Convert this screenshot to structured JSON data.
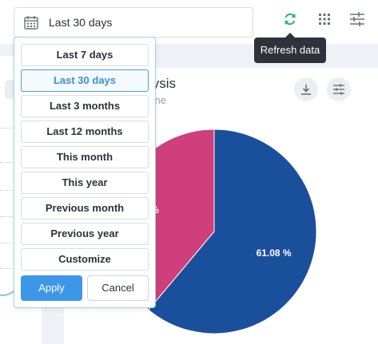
{
  "date_filter": {
    "value": "Last 30 days"
  },
  "toolbar": {
    "refresh_tooltip": "Refresh data"
  },
  "card": {
    "title": "ysis",
    "subtitle": "ntiOne"
  },
  "menu": {
    "options": [
      {
        "label": "Last 7 days",
        "selected": false
      },
      {
        "label": "Last 30 days",
        "selected": true
      },
      {
        "label": "Last 3 months",
        "selected": false
      },
      {
        "label": "Last 12 months",
        "selected": false
      },
      {
        "label": "This month",
        "selected": false
      },
      {
        "label": "This year",
        "selected": false
      },
      {
        "label": "Previous month",
        "selected": false
      },
      {
        "label": "Previous year",
        "selected": false
      },
      {
        "label": "Customize",
        "selected": false
      }
    ],
    "apply_label": "Apply",
    "cancel_label": "Cancel"
  },
  "colors": {
    "accent": "#3d96e8",
    "refresh_icon": "#2eb07a",
    "pie_blue": "#1a4f9c",
    "pie_pink": "#cf3f7b"
  },
  "chart_data": {
    "type": "pie",
    "values": [
      61.08,
      38.92
    ],
    "labels": [
      "61.08 %",
      "%"
    ],
    "colors": [
      "#1a4f9c",
      "#cf3f7b"
    ]
  }
}
